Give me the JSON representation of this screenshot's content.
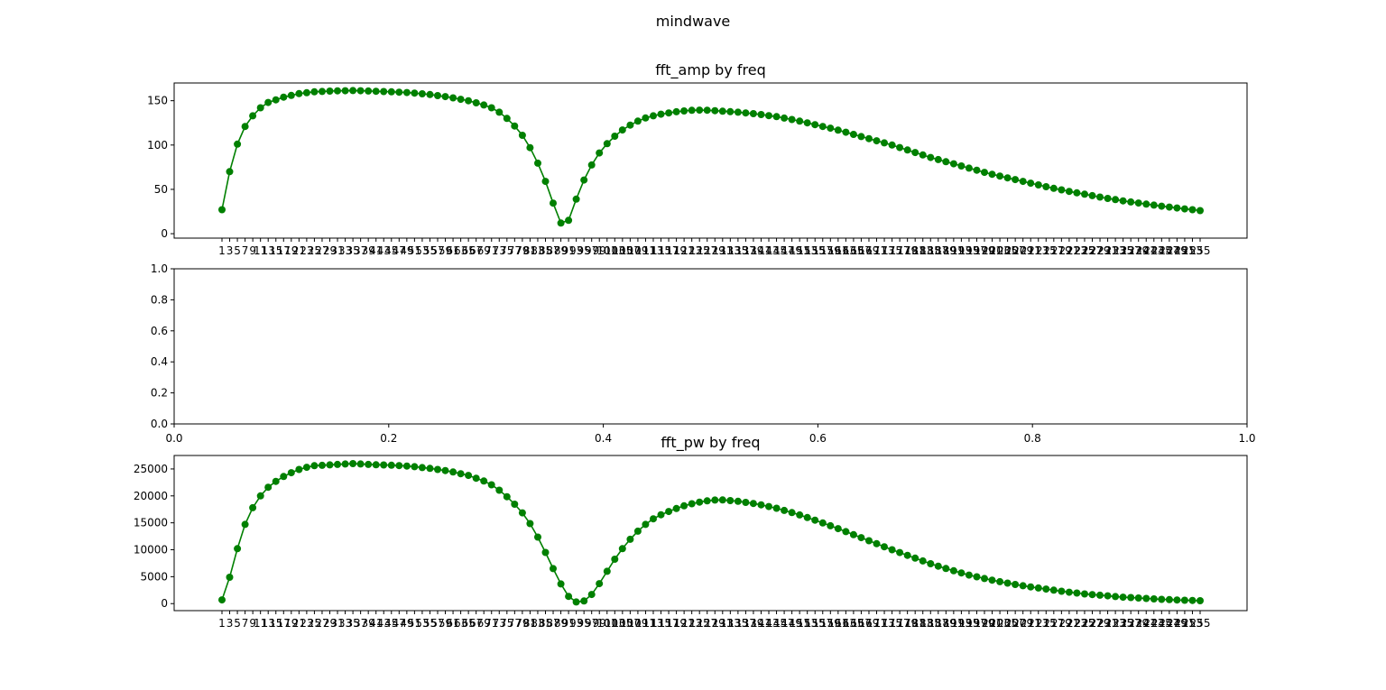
{
  "figure": {
    "suptitle": "mindwave"
  },
  "colors": {
    "series": "#008000",
    "axes_edge": "#000000",
    "background": "#ffffff"
  },
  "chart_data": [
    {
      "type": "line",
      "title": "fft_amp by freq",
      "marker": "circle",
      "x_range": [
        1,
        255
      ],
      "x_tick_step": 2,
      "ylim": [
        -5,
        170
      ],
      "yticks": [
        0,
        50,
        100,
        150
      ],
      "grid": false,
      "y_anchors": [
        [
          1,
          27
        ],
        [
          3,
          70
        ],
        [
          5,
          101
        ],
        [
          7,
          121
        ],
        [
          9,
          133
        ],
        [
          11,
          142
        ],
        [
          13,
          148
        ],
        [
          15,
          151
        ],
        [
          17,
          154
        ],
        [
          19,
          156
        ],
        [
          21,
          158
        ],
        [
          23,
          159
        ],
        [
          25,
          160
        ],
        [
          30,
          161
        ],
        [
          35,
          161.5
        ],
        [
          40,
          160.8
        ],
        [
          45,
          160
        ],
        [
          50,
          159
        ],
        [
          55,
          157
        ],
        [
          60,
          154
        ],
        [
          65,
          150
        ],
        [
          70,
          144
        ],
        [
          72,
          140
        ],
        [
          74,
          134
        ],
        [
          76,
          126
        ],
        [
          78,
          117
        ],
        [
          80,
          105
        ],
        [
          82,
          89
        ],
        [
          84,
          70
        ],
        [
          86,
          48
        ],
        [
          88,
          21
        ],
        [
          90,
          3
        ],
        [
          92,
          27
        ],
        [
          94,
          51
        ],
        [
          96,
          70
        ],
        [
          98,
          85
        ],
        [
          100,
          97
        ],
        [
          102,
          106
        ],
        [
          104,
          114
        ],
        [
          106,
          120
        ],
        [
          108,
          125
        ],
        [
          110,
          129
        ],
        [
          112,
          132
        ],
        [
          114,
          134
        ],
        [
          118,
          137
        ],
        [
          122,
          139
        ],
        [
          126,
          139.5
        ],
        [
          130,
          138.5
        ],
        [
          135,
          137
        ],
        [
          140,
          135
        ],
        [
          145,
          132
        ],
        [
          150,
          128
        ],
        [
          155,
          123
        ],
        [
          160,
          118
        ],
        [
          165,
          112
        ],
        [
          170,
          106
        ],
        [
          175,
          100
        ],
        [
          180,
          93
        ],
        [
          185,
          86
        ],
        [
          190,
          80
        ],
        [
          195,
          74
        ],
        [
          200,
          68
        ],
        [
          205,
          63
        ],
        [
          210,
          58
        ],
        [
          215,
          53
        ],
        [
          220,
          48.5
        ],
        [
          225,
          44.5
        ],
        [
          230,
          40.5
        ],
        [
          235,
          37
        ],
        [
          240,
          34
        ],
        [
          245,
          31
        ],
        [
          250,
          28.5
        ],
        [
          255,
          26
        ]
      ],
      "note_overlay": ""
    },
    {
      "type": "line",
      "title": "",
      "empty": true,
      "xlim": [
        0,
        1
      ],
      "ylim": [
        0,
        1
      ],
      "xticks": [
        "0.0",
        "0.2",
        "0.4",
        "0.6",
        "0.8",
        "1.0"
      ],
      "yticks": [
        "0.0",
        "0.2",
        "0.4",
        "0.6",
        "0.8",
        "1.0"
      ],
      "grid": false
    },
    {
      "type": "line",
      "title": "fft_pw by freq",
      "marker": "circle",
      "x_range": [
        1,
        255
      ],
      "x_tick_step": 2,
      "ylim": [
        -1300,
        27500
      ],
      "yticks": [
        0,
        5000,
        10000,
        15000,
        20000,
        25000
      ],
      "grid": false,
      "y_anchors": [
        [
          1,
          700
        ],
        [
          3,
          4900
        ],
        [
          5,
          10200
        ],
        [
          7,
          14700
        ],
        [
          9,
          17800
        ],
        [
          11,
          20000
        ],
        [
          13,
          21600
        ],
        [
          15,
          22700
        ],
        [
          17,
          23600
        ],
        [
          19,
          24300
        ],
        [
          21,
          24900
        ],
        [
          23,
          25300
        ],
        [
          25,
          25600
        ],
        [
          30,
          25800
        ],
        [
          35,
          26000
        ],
        [
          40,
          25800
        ],
        [
          45,
          25700
        ],
        [
          50,
          25500
        ],
        [
          55,
          25100
        ],
        [
          60,
          24600
        ],
        [
          65,
          23800
        ],
        [
          70,
          22500
        ],
        [
          72,
          21600
        ],
        [
          74,
          20500
        ],
        [
          76,
          19200
        ],
        [
          78,
          17700
        ],
        [
          80,
          16000
        ],
        [
          82,
          13700
        ],
        [
          84,
          11000
        ],
        [
          86,
          8000
        ],
        [
          88,
          5000
        ],
        [
          90,
          2300
        ],
        [
          92,
          400
        ],
        [
          94,
          200
        ],
        [
          96,
          800
        ],
        [
          98,
          2600
        ],
        [
          100,
          4800
        ],
        [
          102,
          7200
        ],
        [
          104,
          9300
        ],
        [
          106,
          11100
        ],
        [
          108,
          12800
        ],
        [
          110,
          14100
        ],
        [
          112,
          15300
        ],
        [
          114,
          16200
        ],
        [
          118,
          17400
        ],
        [
          122,
          18400
        ],
        [
          126,
          19000
        ],
        [
          130,
          19300
        ],
        [
          135,
          19000
        ],
        [
          140,
          18500
        ],
        [
          145,
          17700
        ],
        [
          150,
          16700
        ],
        [
          155,
          15500
        ],
        [
          160,
          14200
        ],
        [
          165,
          12800
        ],
        [
          170,
          11400
        ],
        [
          175,
          10000
        ],
        [
          180,
          8700
        ],
        [
          185,
          7400
        ],
        [
          190,
          6300
        ],
        [
          195,
          5300
        ],
        [
          200,
          4500
        ],
        [
          205,
          3800
        ],
        [
          210,
          3200
        ],
        [
          215,
          2700
        ],
        [
          220,
          2200
        ],
        [
          225,
          1800
        ],
        [
          230,
          1500
        ],
        [
          235,
          1200
        ],
        [
          240,
          1000
        ],
        [
          245,
          800
        ],
        [
          250,
          650
        ],
        [
          255,
          550
        ]
      ]
    }
  ]
}
